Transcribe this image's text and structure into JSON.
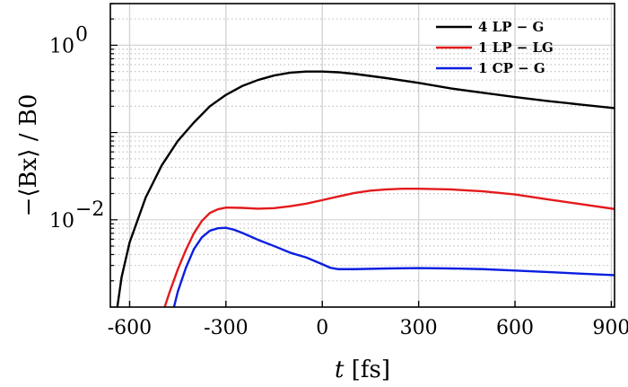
{
  "chart_data": {
    "type": "line",
    "title": "",
    "xlabel_var": "t",
    "xlabel_unit": "[fs]",
    "ylabel": "−⟨Bx⟩ / B0",
    "xlim": [
      -660,
      910
    ],
    "ylim": [
      0.001,
      3.0
    ],
    "yscale": "log",
    "grid": true,
    "legend_position": "top-right",
    "x_ticks": [
      -600,
      -300,
      0,
      300,
      600,
      900
    ],
    "x_tick_labels": [
      "-600",
      "-300",
      "0",
      "300",
      "600",
      "900"
    ],
    "y_major_ticks": [
      0.01,
      1
    ],
    "y_tick_labels": [
      {
        "base": "10",
        "exp": "−2"
      },
      {
        "base": "10",
        "exp": "0"
      }
    ],
    "series": [
      {
        "name": "4 LP − G",
        "color": "#000000",
        "x": [
          -640,
          -625,
          -600,
          -550,
          -500,
          -450,
          -400,
          -350,
          -300,
          -250,
          -200,
          -150,
          -100,
          -50,
          0,
          50,
          100,
          200,
          300,
          400,
          500,
          600,
          700,
          800,
          910
        ],
        "y": [
          0.0009,
          0.0022,
          0.0055,
          0.018,
          0.042,
          0.08,
          0.13,
          0.2,
          0.27,
          0.34,
          0.4,
          0.45,
          0.485,
          0.5,
          0.5,
          0.49,
          0.47,
          0.42,
          0.37,
          0.32,
          0.285,
          0.255,
          0.23,
          0.21,
          0.19
        ]
      },
      {
        "name": "1 LP − LG",
        "color": "#e41a1c",
        "x": [
          -495,
          -475,
          -450,
          -425,
          -400,
          -375,
          -350,
          -325,
          -300,
          -250,
          -200,
          -150,
          -100,
          -50,
          0,
          50,
          100,
          150,
          200,
          250,
          300,
          400,
          500,
          600,
          700,
          800,
          910
        ],
        "y": [
          0.0009,
          0.0015,
          0.0027,
          0.0045,
          0.007,
          0.0097,
          0.012,
          0.0132,
          0.0138,
          0.0137,
          0.0134,
          0.0136,
          0.0143,
          0.0153,
          0.0168,
          0.0185,
          0.0203,
          0.0216,
          0.0223,
          0.0227,
          0.0227,
          0.0223,
          0.0212,
          0.0195,
          0.0172,
          0.0152,
          0.0133
        ]
      },
      {
        "name": "1 CP − G",
        "color": "#0a1fe0",
        "x": [
          -465,
          -450,
          -425,
          -400,
          -375,
          -350,
          -325,
          -300,
          -275,
          -250,
          -200,
          -150,
          -100,
          -50,
          0,
          25,
          50,
          100,
          200,
          300,
          400,
          500,
          600,
          700,
          800,
          910
        ],
        "y": [
          0.0009,
          0.0015,
          0.0028,
          0.0046,
          0.0063,
          0.0075,
          0.008,
          0.0081,
          0.0077,
          0.0071,
          0.0059,
          0.005,
          0.0042,
          0.0037,
          0.0031,
          0.00282,
          0.00272,
          0.00272,
          0.00277,
          0.0028,
          0.00277,
          0.00272,
          0.00262,
          0.00252,
          0.00242,
          0.00232
        ]
      }
    ]
  }
}
